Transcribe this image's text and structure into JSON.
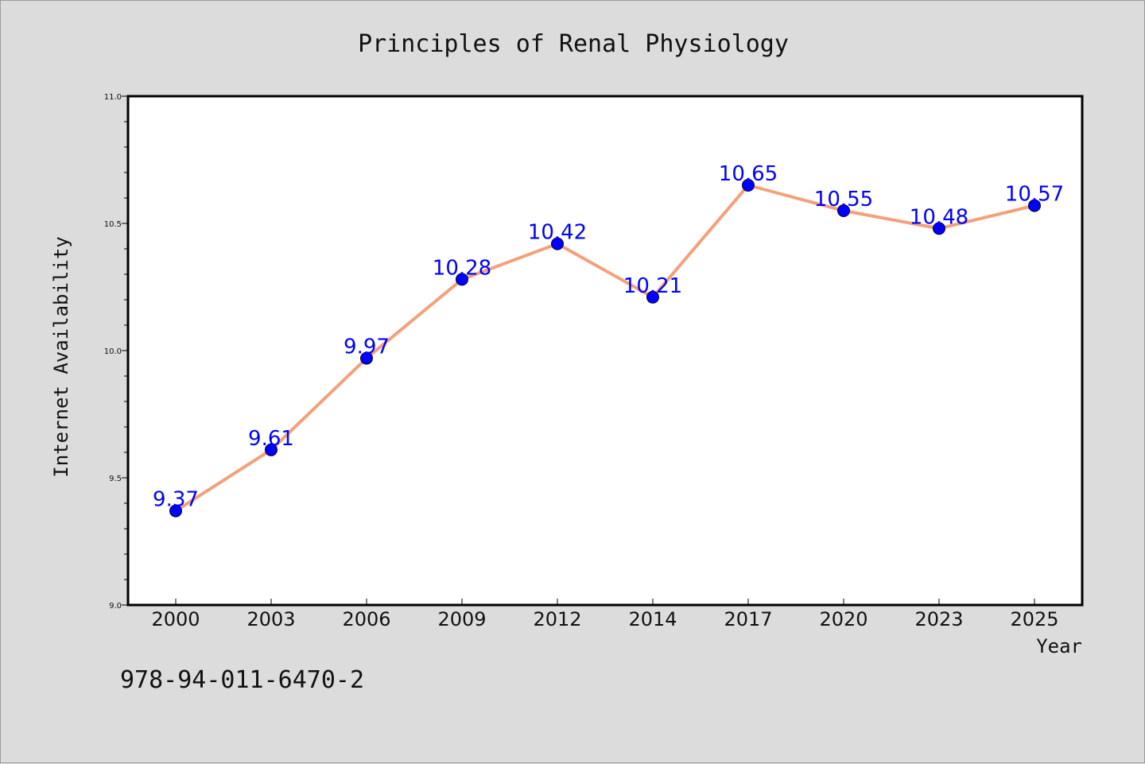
{
  "chart_data": {
    "type": "line",
    "title": "Principles of Renal Physiology",
    "xlabel": "Year",
    "ylabel": "Internet Availability",
    "categories": [
      "2000",
      "2003",
      "2006",
      "2009",
      "2012",
      "2014",
      "2017",
      "2020",
      "2023",
      "2025"
    ],
    "series": [
      {
        "values": [
          9.37,
          9.61,
          9.97,
          10.28,
          10.42,
          10.21,
          10.65,
          10.55,
          10.48,
          10.57
        ],
        "line_color": "#f4a07a",
        "marker_color": "#0000ff"
      }
    ],
    "data_labels": [
      "9.37",
      "9.61",
      "9.97",
      "10.28",
      "10.42",
      "10.21",
      "10.65",
      "10.55",
      "10.48",
      "10.57"
    ],
    "ylim": [
      9.0,
      11.0
    ],
    "yticks": [
      "9.0",
      "9.5",
      "10.0",
      "10.5",
      "11.0"
    ],
    "grid": false,
    "label_color": "#0000ff",
    "background": "#dcdcdc",
    "plot_background": "#ffffff"
  },
  "footer": {
    "isbn": "978-94-011-6470-2"
  }
}
